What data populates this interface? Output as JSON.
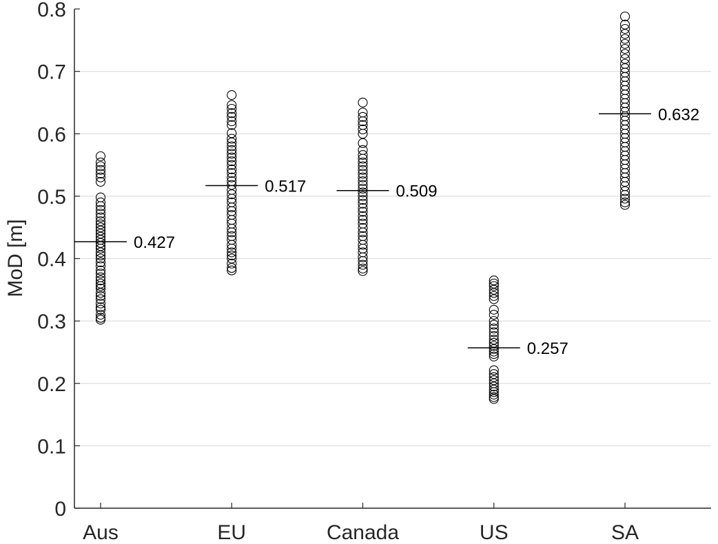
{
  "chart_data": {
    "type": "scatter",
    "title": "",
    "xlabel": "",
    "ylabel": "MoD [m]",
    "categories": [
      "Aus",
      "EU",
      "Canada",
      "US",
      "SA"
    ],
    "ylim": [
      0,
      0.8
    ],
    "yticks": [
      "0",
      "0.1",
      "0.2",
      "0.3",
      "0.4",
      "0.5",
      "0.6",
      "0.7",
      "0.8"
    ],
    "grid": "y-major",
    "marker": "open-circle",
    "series": [
      {
        "category": "Aus",
        "mean": 0.427,
        "mean_label": "0.427",
        "values": [
          0.302,
          0.305,
          0.31,
          0.318,
          0.322,
          0.328,
          0.335,
          0.34,
          0.345,
          0.352,
          0.356,
          0.36,
          0.365,
          0.37,
          0.376,
          0.381,
          0.388,
          0.394,
          0.4,
          0.405,
          0.41,
          0.416,
          0.42,
          0.425,
          0.43,
          0.435,
          0.44,
          0.445,
          0.45,
          0.455,
          0.46,
          0.466,
          0.472,
          0.478,
          0.484,
          0.49,
          0.498,
          0.523,
          0.53,
          0.536,
          0.542,
          0.548,
          0.554,
          0.564
        ]
      },
      {
        "category": "EU",
        "mean": 0.517,
        "mean_label": "0.517",
        "values": [
          0.381,
          0.385,
          0.392,
          0.4,
          0.405,
          0.41,
          0.416,
          0.422,
          0.43,
          0.436,
          0.442,
          0.448,
          0.456,
          0.462,
          0.47,
          0.476,
          0.482,
          0.49,
          0.496,
          0.503,
          0.51,
          0.518,
          0.524,
          0.53,
          0.537,
          0.543,
          0.55,
          0.556,
          0.562,
          0.568,
          0.574,
          0.58,
          0.586,
          0.592,
          0.601,
          0.614,
          0.62,
          0.627,
          0.633,
          0.64,
          0.646,
          0.662
        ]
      },
      {
        "category": "Canada",
        "mean": 0.509,
        "mean_label": "0.509",
        "values": [
          0.38,
          0.384,
          0.39,
          0.396,
          0.402,
          0.41,
          0.416,
          0.422,
          0.43,
          0.436,
          0.442,
          0.449,
          0.456,
          0.462,
          0.468,
          0.475,
          0.481,
          0.488,
          0.494,
          0.5,
          0.506,
          0.512,
          0.518,
          0.524,
          0.53,
          0.536,
          0.542,
          0.548,
          0.554,
          0.56,
          0.566,
          0.574,
          0.585,
          0.6,
          0.607,
          0.614,
          0.62,
          0.627,
          0.634,
          0.65
        ]
      },
      {
        "category": "US",
        "mean": 0.257,
        "mean_label": "0.257",
        "values": [
          0.175,
          0.178,
          0.182,
          0.186,
          0.19,
          0.195,
          0.2,
          0.205,
          0.21,
          0.215,
          0.221,
          0.243,
          0.247,
          0.251,
          0.255,
          0.26,
          0.265,
          0.27,
          0.276,
          0.282,
          0.288,
          0.294,
          0.3,
          0.31,
          0.318,
          0.335,
          0.34,
          0.345,
          0.35,
          0.356,
          0.36,
          0.365
        ]
      },
      {
        "category": "SA",
        "mean": 0.632,
        "mean_label": "0.632",
        "values": [
          0.486,
          0.49,
          0.496,
          0.502,
          0.508,
          0.516,
          0.523,
          0.53,
          0.537,
          0.544,
          0.551,
          0.558,
          0.565,
          0.572,
          0.579,
          0.586,
          0.593,
          0.6,
          0.607,
          0.614,
          0.621,
          0.628,
          0.635,
          0.642,
          0.649,
          0.656,
          0.663,
          0.67,
          0.677,
          0.684,
          0.691,
          0.698,
          0.705,
          0.712,
          0.72,
          0.728,
          0.736,
          0.744,
          0.752,
          0.76,
          0.768,
          0.775,
          0.788
        ]
      }
    ]
  }
}
